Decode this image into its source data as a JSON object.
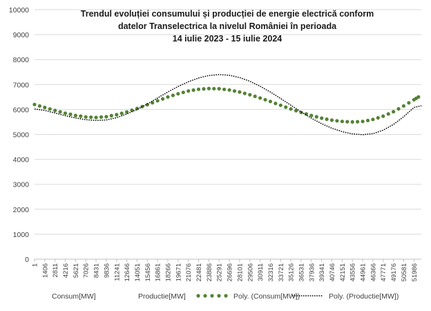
{
  "chart_data": {
    "type": "line",
    "title_lines": [
      "Trendul evoluției consumului și producției de energie electrică conform",
      "datelor Transelectrica la nivelul României în perioada",
      "14 iulie 2023  - 15  iulie 2024"
    ],
    "xlabel": "",
    "ylabel": "",
    "ylim": [
      0,
      10000
    ],
    "yticks": [
      "0",
      "1000",
      "2000",
      "3000",
      "4000",
      "5000",
      "6000",
      "7000",
      "8000",
      "9000",
      "10000"
    ],
    "x_range": [
      1,
      53000
    ],
    "xtick_labels": [
      "1",
      "1406",
      "2811",
      "4216",
      "5621",
      "7026",
      "8431",
      "9836",
      "11241",
      "12646",
      "14051",
      "15456",
      "16861",
      "18266",
      "19671",
      "21076",
      "22481",
      "23886",
      "25291",
      "26696",
      "28101",
      "29506",
      "30911",
      "32316",
      "33721",
      "35126",
      "36531",
      "37936",
      "39341",
      "40746",
      "42151",
      "43556",
      "44961",
      "46366",
      "47771",
      "49176",
      "50581",
      "51986"
    ],
    "grid": true,
    "legend_position": "bottom",
    "legend": [
      {
        "label": "Consum[MW]",
        "style": "none",
        "color": "#4472c4"
      },
      {
        "label": "Productie[MW]",
        "style": "none",
        "color": "#ed7d31"
      },
      {
        "label": "Poly. (Consum[MW])",
        "style": "dotted-round",
        "color": "#548235"
      },
      {
        "label": "Poly. (Productie[MW])",
        "style": "dotted-fine",
        "color": "#000000"
      }
    ],
    "series": [
      {
        "name": "Poly. (Consum[MW])",
        "color": "#548235",
        "style": "dotted-round",
        "x": [
          1,
          1406,
          2811,
          4216,
          5621,
          7026,
          8431,
          9836,
          11241,
          12646,
          14051,
          15456,
          16861,
          18266,
          19671,
          21076,
          22481,
          23886,
          25291,
          26696,
          28101,
          29506,
          30911,
          32316,
          33721,
          35126,
          36531,
          37936,
          39341,
          40746,
          42151,
          43556,
          44961,
          46366,
          47771,
          49176,
          50581,
          51986,
          52600
        ],
        "y": [
          6200,
          6080,
          5960,
          5850,
          5760,
          5700,
          5680,
          5710,
          5790,
          5900,
          6040,
          6190,
          6350,
          6500,
          6630,
          6740,
          6810,
          6840,
          6830,
          6780,
          6700,
          6590,
          6460,
          6320,
          6170,
          6020,
          5880,
          5760,
          5650,
          5570,
          5520,
          5500,
          5520,
          5600,
          5730,
          5910,
          6140,
          6390,
          6500
        ]
      },
      {
        "name": "Poly. (Productie[MW])",
        "color": "#000000",
        "style": "dotted-fine",
        "x": [
          1,
          1406,
          2811,
          4216,
          5621,
          7026,
          8431,
          9836,
          11241,
          12646,
          14051,
          15456,
          16861,
          18266,
          19671,
          21076,
          22481,
          23886,
          25291,
          26696,
          28101,
          29506,
          30911,
          32316,
          33721,
          35126,
          36531,
          37936,
          39341,
          40746,
          42151,
          43556,
          44961,
          46366,
          47771,
          49176,
          50581,
          51986,
          53000
        ],
        "y": [
          6020,
          5960,
          5860,
          5750,
          5660,
          5590,
          5560,
          5580,
          5670,
          5820,
          6000,
          6220,
          6460,
          6700,
          6920,
          7110,
          7260,
          7360,
          7400,
          7370,
          7280,
          7130,
          6930,
          6700,
          6440,
          6170,
          5900,
          5650,
          5430,
          5250,
          5110,
          5020,
          4990,
          5030,
          5170,
          5400,
          5710,
          6080,
          6150
        ]
      }
    ]
  }
}
